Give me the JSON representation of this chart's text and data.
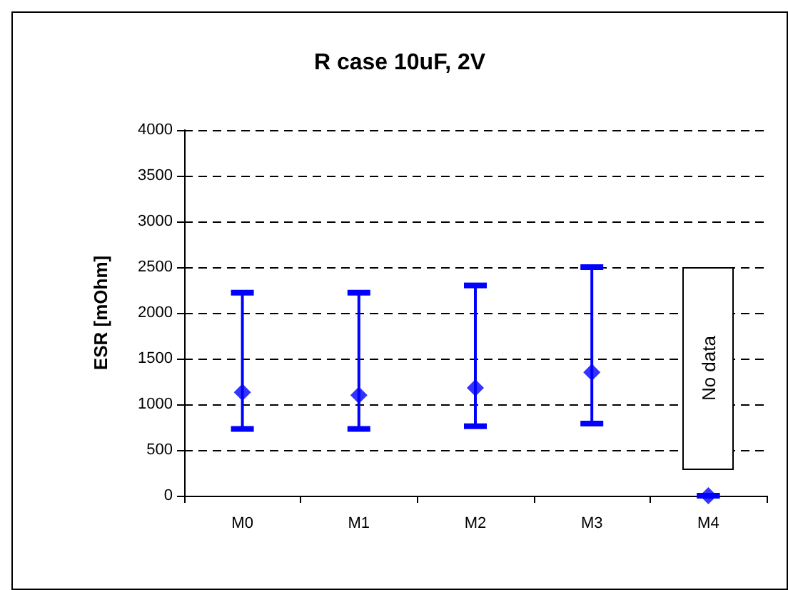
{
  "chart_data": {
    "type": "scatter",
    "title": "R case 10uF, 2V",
    "ylabel": "ESR [mOhm]",
    "categories": [
      "M0",
      "M1",
      "M2",
      "M3",
      "M4"
    ],
    "series": [
      {
        "color": "#0000ff",
        "values": [
          1130,
          1100,
          1180,
          1350,
          0
        ],
        "errors": [
          [
            730,
            2220
          ],
          [
            730,
            2220
          ],
          [
            760,
            2300
          ],
          [
            790,
            2500
          ],
          [
            0,
            0
          ]
        ]
      }
    ],
    "ylim": [
      0,
      4000
    ],
    "yticks": [
      0,
      500,
      1000,
      1500,
      2000,
      2500,
      3000,
      3500,
      4000
    ],
    "grid": "y",
    "marker": "diamond",
    "annotations": [
      "No data"
    ]
  }
}
